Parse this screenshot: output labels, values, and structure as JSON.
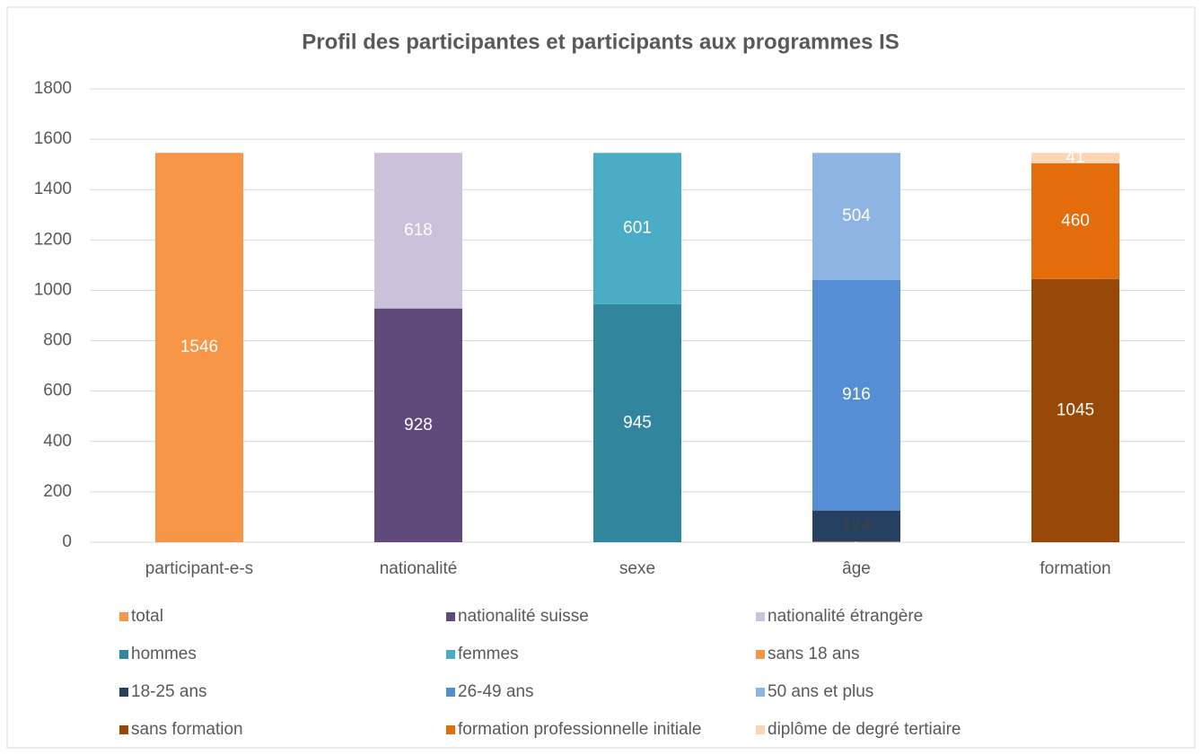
{
  "chart_data": {
    "type": "stacked_bar",
    "title": "Profil des participantes et participants aux programmes IS",
    "categories": [
      "participant-e-s",
      "nationalité",
      "sexe",
      "âge",
      "formation"
    ],
    "ylim": [
      0,
      1800
    ],
    "yticks": [
      0,
      200,
      400,
      600,
      800,
      1000,
      1200,
      1400,
      1600,
      1800
    ],
    "grid": true,
    "series": [
      {
        "name": "total",
        "color": "#f79646",
        "label_color": "#ffffff",
        "values": [
          1546,
          null,
          null,
          null,
          null
        ]
      },
      {
        "name": "nationalité suisse",
        "color": "#604a7b",
        "label_color": "#ffffff",
        "values": [
          null,
          928,
          null,
          null,
          null
        ]
      },
      {
        "name": "nationalité étrangère",
        "color": "#ccc1da",
        "label_color": "#ffffff",
        "values": [
          null,
          618,
          null,
          null,
          null
        ]
      },
      {
        "name": "hommes",
        "color": "#31859c",
        "label_color": "#ffffff",
        "values": [
          null,
          null,
          945,
          null,
          null
        ]
      },
      {
        "name": "femmes",
        "color": "#4bacc6",
        "label_color": "#ffffff",
        "values": [
          null,
          null,
          601,
          null,
          null
        ]
      },
      {
        "name": "sans 18 ans",
        "color": "#f79646",
        "label_color": "#ffffff",
        "values": [
          null,
          null,
          null,
          2,
          null
        ]
      },
      {
        "name": "18-25 ans",
        "color": "#254061",
        "label_color": "#404040",
        "values": [
          null,
          null,
          null,
          124,
          null
        ]
      },
      {
        "name": "26-49 ans",
        "color": "#558ed5",
        "label_color": "#ffffff",
        "values": [
          null,
          null,
          null,
          916,
          null
        ]
      },
      {
        "name": "50 ans et plus",
        "color": "#8eb4e3",
        "label_color": "#ffffff",
        "values": [
          null,
          null,
          null,
          504,
          null
        ]
      },
      {
        "name": "sans formation",
        "color": "#984807",
        "label_color": "#ffffff",
        "values": [
          null,
          null,
          null,
          null,
          1045
        ]
      },
      {
        "name": "formation professionnelle initiale",
        "color": "#e46c0a",
        "label_color": "#ffffff",
        "values": [
          null,
          null,
          null,
          null,
          460
        ]
      },
      {
        "name": "diplôme de degré tertiaire",
        "color": "#fcd5b5",
        "label_color": "#ffffff",
        "values": [
          null,
          null,
          null,
          null,
          41
        ]
      }
    ]
  }
}
